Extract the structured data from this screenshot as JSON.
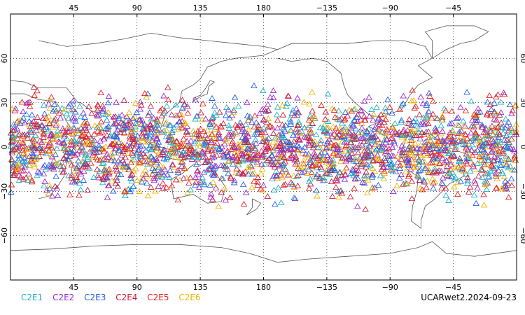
{
  "chart_data": {
    "type": "scatter",
    "projection": "cylindrical, centered on 180",
    "lon_ticks": [
      "45",
      "90",
      "135",
      "180",
      "−135",
      "−90",
      "−45"
    ],
    "lat_ticks": [
      "60",
      "30",
      "0",
      "−30",
      "−60"
    ],
    "lat_range": [
      -90,
      90
    ],
    "lon_range": [
      0,
      360
    ],
    "grid": "dotted",
    "marker": "open-triangle",
    "series": [
      {
        "name": "C2E1",
        "color": "#1fb4c8"
      },
      {
        "name": "C2E2",
        "color": "#9a2ad0"
      },
      {
        "name": "C2E3",
        "color": "#2060e0"
      },
      {
        "name": "C2E4",
        "color": "#c81e3c"
      },
      {
        "name": "C2E5",
        "color": "#e8201a"
      },
      {
        "name": "C2E6",
        "color": "#f0b400"
      }
    ],
    "point_lat_band": [
      -45,
      45
    ]
  },
  "footer": {
    "label": "UCARwet2.2024-09-23"
  }
}
